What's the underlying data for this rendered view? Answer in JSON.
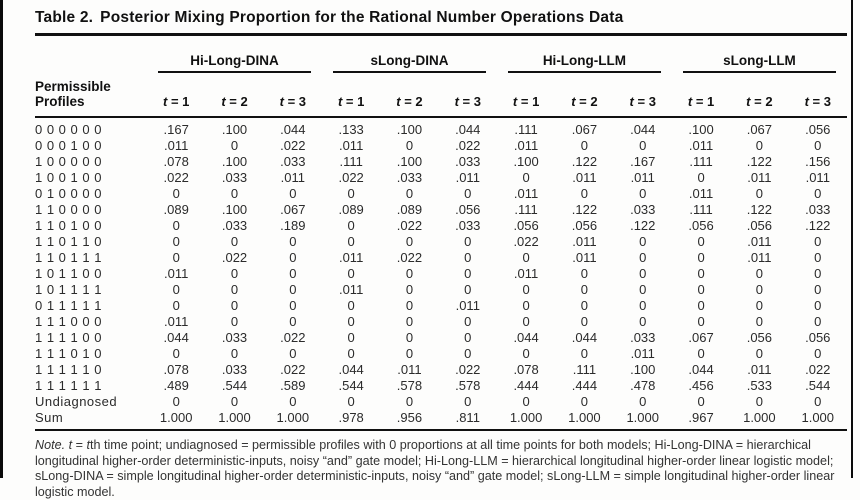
{
  "page": {
    "title_label": "Table 2.",
    "title_text": "Posterior Mixing Proportion for the Rational Number Operations Data"
  },
  "table": {
    "stub_header_line1": "Permissible",
    "stub_header_line2": "Profiles",
    "groups": [
      {
        "label": "Hi-Long-DINA"
      },
      {
        "label": "sLong-DINA"
      },
      {
        "label": "Hi-Long-LLM"
      },
      {
        "label": "sLong-LLM"
      }
    ],
    "time_labels": [
      {
        "sym": "t",
        "rest": "= 1"
      },
      {
        "sym": "t",
        "rest": "= 2"
      },
      {
        "sym": "t",
        "rest": "= 3"
      }
    ],
    "rows": [
      {
        "profile": "0 0 0 0 0 0",
        "values": [
          ".167",
          ".100",
          ".044",
          ".133",
          ".100",
          ".044",
          ".111",
          ".067",
          ".044",
          ".100",
          ".067",
          ".056"
        ]
      },
      {
        "profile": "0 0 0 1 0 0",
        "values": [
          ".011",
          "0",
          ".022",
          ".011",
          "0",
          ".022",
          ".011",
          "0",
          "0",
          ".011",
          "0",
          "0"
        ]
      },
      {
        "profile": "1 0 0 0 0 0",
        "values": [
          ".078",
          ".100",
          ".033",
          ".111",
          ".100",
          ".033",
          ".100",
          ".122",
          ".167",
          ".111",
          ".122",
          ".156"
        ]
      },
      {
        "profile": "1 0 0 1 0 0",
        "values": [
          ".022",
          ".033",
          ".011",
          ".022",
          ".033",
          ".011",
          "0",
          ".011",
          ".011",
          "0",
          ".011",
          ".011"
        ]
      },
      {
        "profile": "0 1 0 0 0 0",
        "values": [
          "0",
          "0",
          "0",
          "0",
          "0",
          "0",
          ".011",
          "0",
          "0",
          ".011",
          "0",
          "0"
        ]
      },
      {
        "profile": "1 1 0 0 0 0",
        "values": [
          ".089",
          ".100",
          ".067",
          ".089",
          ".089",
          ".056",
          ".111",
          ".122",
          ".033",
          ".111",
          ".122",
          ".033"
        ]
      },
      {
        "profile": "1 1 0 1 0 0",
        "values": [
          "0",
          ".033",
          ".189",
          "0",
          ".022",
          ".033",
          ".056",
          ".056",
          ".122",
          ".056",
          ".056",
          ".122"
        ]
      },
      {
        "profile": "1 1 0 1 1 0",
        "values": [
          "0",
          "0",
          "0",
          "0",
          "0",
          "0",
          ".022",
          ".011",
          "0",
          "0",
          ".011",
          "0"
        ]
      },
      {
        "profile": "1 1 0 1 1 1",
        "values": [
          "0",
          ".022",
          "0",
          ".011",
          ".022",
          "0",
          "0",
          ".011",
          "0",
          "0",
          ".011",
          "0"
        ]
      },
      {
        "profile": "1 0 1 1 0 0",
        "values": [
          ".011",
          "0",
          "0",
          "0",
          "0",
          "0",
          ".011",
          "0",
          "0",
          "0",
          "0",
          "0"
        ]
      },
      {
        "profile": "1 0 1 1 1 1",
        "values": [
          "0",
          "0",
          "0",
          ".011",
          "0",
          "0",
          "0",
          "0",
          "0",
          "0",
          "0",
          "0"
        ]
      },
      {
        "profile": "0 1 1 1 1 1",
        "values": [
          "0",
          "0",
          "0",
          "0",
          "0",
          ".011",
          "0",
          "0",
          "0",
          "0",
          "0",
          "0"
        ]
      },
      {
        "profile": "1 1 1 0 0 0",
        "values": [
          ".011",
          "0",
          "0",
          "0",
          "0",
          "0",
          "0",
          "0",
          "0",
          "0",
          "0",
          "0"
        ]
      },
      {
        "profile": "1 1 1 1 0 0",
        "values": [
          ".044",
          ".033",
          ".022",
          "0",
          "0",
          "0",
          ".044",
          ".044",
          ".033",
          ".067",
          ".056",
          ".056"
        ]
      },
      {
        "profile": "1 1 1 0 1 0",
        "values": [
          "0",
          "0",
          "0",
          "0",
          "0",
          "0",
          "0",
          "0",
          ".011",
          "0",
          "0",
          "0"
        ]
      },
      {
        "profile": "1 1 1 1 1 0",
        "values": [
          ".078",
          ".033",
          ".022",
          ".044",
          ".011",
          ".022",
          ".078",
          ".111",
          ".100",
          ".044",
          ".011",
          ".022"
        ]
      },
      {
        "profile": "1 1 1 1 1 1",
        "values": [
          ".489",
          ".544",
          ".589",
          ".544",
          ".578",
          ".578",
          ".444",
          ".444",
          ".478",
          ".456",
          ".533",
          ".544"
        ]
      },
      {
        "profile": "Undiagnosed",
        "values": [
          "0",
          "0",
          "0",
          "0",
          "0",
          "0",
          "0",
          "0",
          "0",
          "0",
          "0",
          "0"
        ]
      },
      {
        "profile": "Sum",
        "values": [
          "1.000",
          "1.000",
          "1.000",
          ".978",
          ".956",
          ".811",
          "1.000",
          "1.000",
          "1.000",
          ".967",
          "1.000",
          "1.000"
        ]
      }
    ]
  },
  "note": {
    "parts": [
      {
        "text": "Note. ",
        "italic": true
      },
      {
        "text": "t",
        "italic": true
      },
      {
        "text": " = ",
        "italic": false
      },
      {
        "text": "t",
        "italic": true
      },
      {
        "text": "th time point; undiagnosed = permissible profiles with 0 proportions at all time points for both models; Hi-Long-DINA = hierarchical longitudinal higher-order deterministic-inputs, noisy “and” gate model; Hi-Long-LLM = hierarchical longitudinal higher-order linear logistic model; sLong-DINA = simple longitudinal higher-order deterministic-inputs, noisy “and” gate model; sLong-LLM = simple longitudinal higher-order linear logistic model.",
        "italic": false
      }
    ]
  }
}
